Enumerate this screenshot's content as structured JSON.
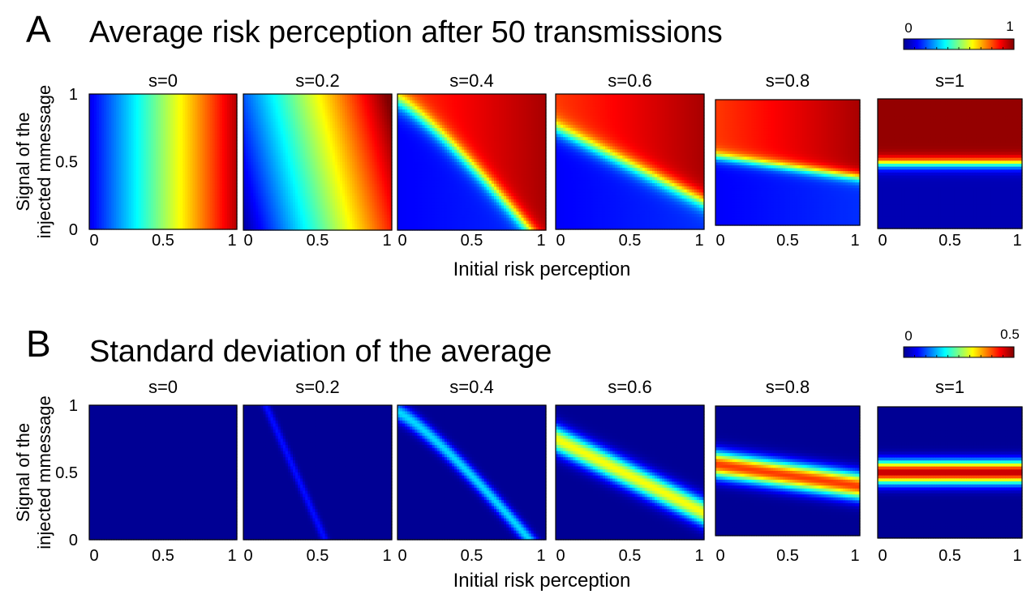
{
  "figure": {
    "panels": [
      {
        "letter": "A",
        "title": "Average risk perception after 50 transmissions",
        "colorbar": {
          "min_label": "0",
          "max_label": "1",
          "min": 0,
          "max": 1,
          "colormap": "jet"
        },
        "xlabel": "Initial risk perception",
        "ylabel_line1": "Signal of the",
        "ylabel_line2": "injected mmessage",
        "quantity": "mean"
      },
      {
        "letter": "B",
        "title": "Standard deviation of the average",
        "colorbar": {
          "min_label": "0",
          "max_label": "0.5",
          "min": 0,
          "max": 0.5,
          "colormap": "jet"
        },
        "xlabel": "Initial risk perception",
        "ylabel_line1": "Signal of the",
        "ylabel_line2": "injected mmessage",
        "quantity": "std"
      }
    ],
    "subplot_titles": [
      "s=0",
      "s=0.2",
      "s=0.4",
      "s=0.6",
      "s=0.8",
      "s=1"
    ],
    "s_values": [
      0,
      0.2,
      0.4,
      0.6,
      0.8,
      1
    ],
    "x_ticks": [
      "0",
      "0.5",
      "1"
    ],
    "y_ticks": [
      "0",
      "0.5",
      "1"
    ]
  },
  "chart_data": [
    {
      "type": "heatmap",
      "title": "Average risk perception after 50 transmissions",
      "xlabel": "Initial risk perception",
      "ylabel": "Signal of the injected mmessage",
      "xlim": [
        0,
        1
      ],
      "ylim": [
        0,
        1
      ],
      "facets": [
        "s=0",
        "s=0.2",
        "s=0.4",
        "s=0.6",
        "s=0.8",
        "s=1"
      ],
      "colorbar_range": [
        0,
        1
      ],
      "colormap": "jet",
      "description_values": {
        "s=0": "value depends only on initial risk perception x: low ~0.1 at x=0, ~0.35 at x=0.3, ~0.65 at x=0.6, ~0.95 at x=1",
        "s=0.2": "diagonal gradient from low at left to high at right, slightly tilted by signal",
        "s=0.4": "sigmoidal boundary from (0,1) to (0.85,0); low (~0.15) below-left, high (~0.85-0.95) above-right",
        "s=0.6": "boundary from (0,0.75) to (1,0.2); low (~0.15) below, high (~0.9) above",
        "s=0.8": "boundary near signal 0.5-0.35; low (~0.1) below, high (~0.85-0.95) above",
        "s=1": "horizontal boundary at signal ~0.5; ~0.05 below, ~0.98 above"
      }
    },
    {
      "type": "heatmap",
      "title": "Standard deviation of the average",
      "xlabel": "Initial risk perception",
      "ylabel": "Signal of the injected mmessage",
      "xlim": [
        0,
        1
      ],
      "ylim": [
        0,
        1
      ],
      "facets": [
        "s=0",
        "s=0.2",
        "s=0.4",
        "s=0.6",
        "s=0.8",
        "s=1"
      ],
      "colorbar_range": [
        0,
        0.5
      ],
      "colormap": "jet",
      "description_values": {
        "s=0": "uniformly ~0",
        "s=0.2": "faint band (~0.06) along the mean-field boundary",
        "s=0.4": "cyan band (~0.15) along the boundary",
        "s=0.6": "yellow band (~0.3) along the boundary",
        "s=0.8": "red band (~0.4) along the boundary",
        "s=1": "red band (~0.45) at signal ~0.5"
      }
    }
  ]
}
